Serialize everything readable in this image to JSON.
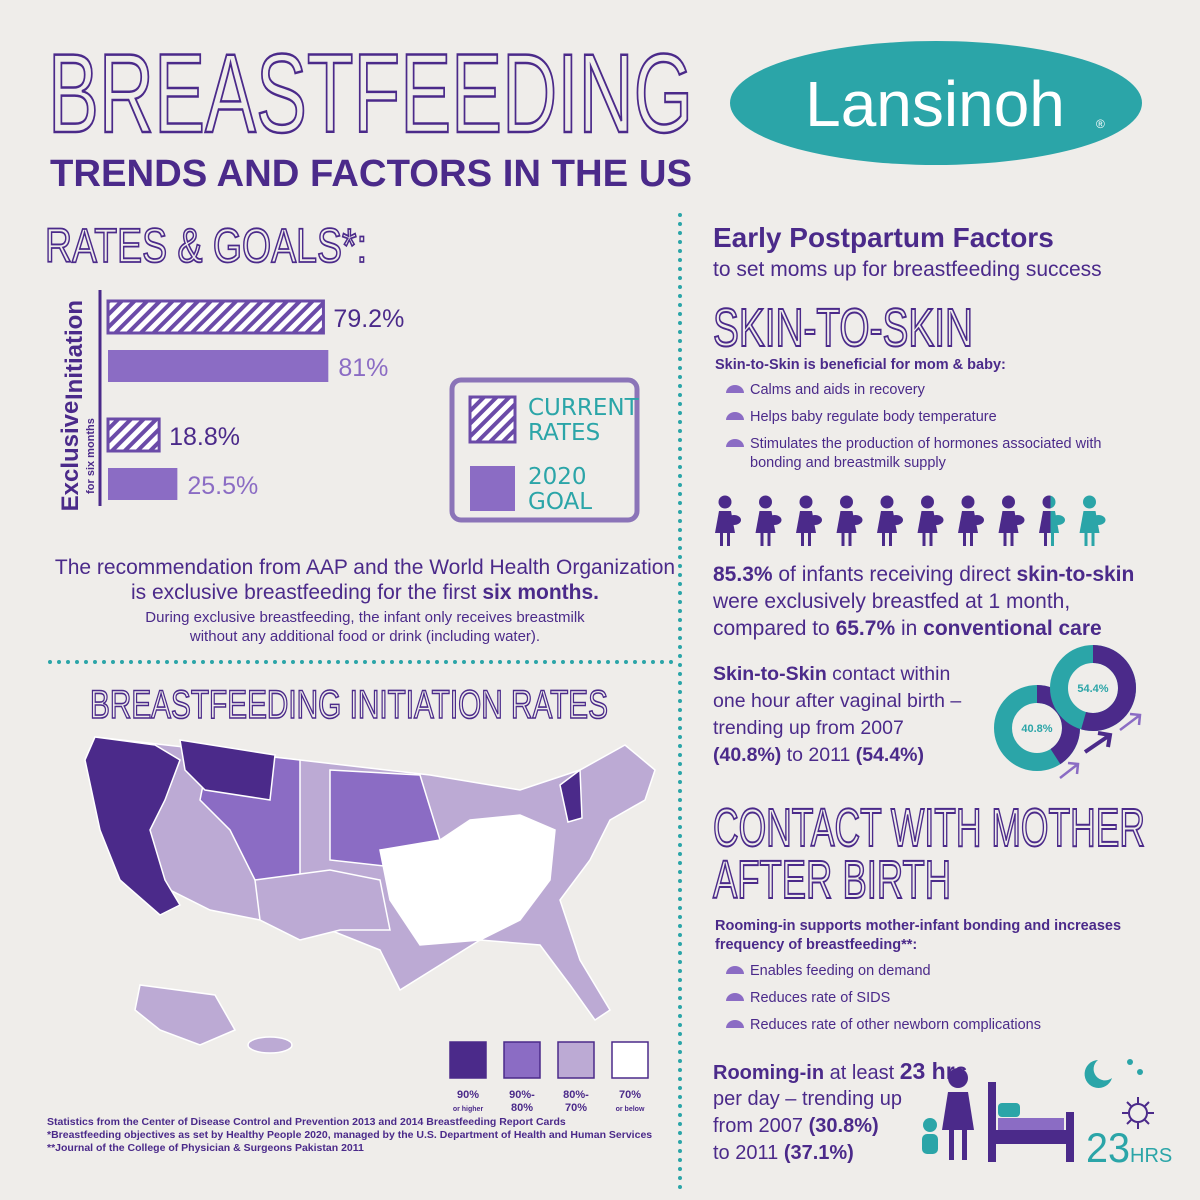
{
  "header": {
    "title": "BREASTFEEDING",
    "subtitle": "TRENDS AND FACTORS IN THE US",
    "logo": "Lansinoh",
    "logo_mark": "®"
  },
  "chart_data": [
    {
      "type": "bar",
      "orientation": "horizontal",
      "title": "RATES & GOALS*:",
      "categories": [
        "Initiation",
        "Exclusive"
      ],
      "category_notes": [
        null,
        "for six months"
      ],
      "series": [
        {
          "name": "CURRENT RATES",
          "color": "#6b4ba8",
          "pattern": "hatch",
          "values": [
            79.2,
            18.8
          ],
          "value_labels": [
            "79.2%",
            "18.8%"
          ]
        },
        {
          "name": "2020 GOAL",
          "color": "#8b6cc4",
          "values": [
            81,
            25.5
          ],
          "value_labels": [
            "81%",
            "25.5%"
          ]
        }
      ]
    },
    {
      "type": "donut",
      "values": [
        40.8,
        54.4
      ],
      "value_labels": [
        "40.8%",
        "54.4%"
      ],
      "color": "#4b2a8a",
      "track_color": "#2ba5a8"
    }
  ],
  "aap_note": {
    "lines": [
      [
        "The recommendation from AAP and the World Health Organization"
      ],
      [
        "is exclusive breastfeeding for the first ",
        "six months."
      ]
    ],
    "detail": [
      "During exclusive breastfeeding, the infant only receives breastmilk",
      "without any additional food or drink (including water)."
    ]
  },
  "map": {
    "title": "BREASTFEEDING INITIATION RATES",
    "legend": [
      {
        "color": "#4b2a8a",
        "label": [
          "90%",
          "or higher"
        ]
      },
      {
        "color": "#8b6cc4",
        "label": [
          "90%-",
          "80%"
        ]
      },
      {
        "color": "#bcaad4",
        "label": [
          "80%-",
          "70%"
        ]
      },
      {
        "color": "#ffffff",
        "label": [
          "70%",
          "or below"
        ]
      }
    ]
  },
  "footnotes": [
    "Statistics from the Center of Disease Control and Prevention 2013 and 2014 Breastfeeding Report Cards",
    "*Breastfeeding objectives as set by Healthy People 2020, managed by the U.S. Department of Health and Human Services",
    "**Journal of the College of Physician & Surgeons Pakistan 2011"
  ],
  "postpartum": {
    "title": "Early Postpartum Factors",
    "subtitle": "to set moms up for breastfeeding success"
  },
  "skin": {
    "heading": "SKIN-TO-SKIN",
    "intro": "Skin-to-Skin is beneficial for mom & baby:",
    "bullets": [
      [
        "Calms and aids in recovery"
      ],
      [
        "Helps baby regulate body temperature"
      ],
      [
        "Stimulates the production of hormones associated with",
        "bonding and breastmilk supply"
      ]
    ],
    "stat": {
      "value": 85.3,
      "lines": [
        [
          "85.3%",
          " of infants receiving direct ",
          "skin-to-skin"
        ],
        [
          "were exclusively breastfed at 1 month,"
        ],
        [
          "compared to ",
          "65.7%",
          " in ",
          "conventional care"
        ]
      ]
    },
    "trend": [
      [
        "Skin-to-Skin",
        " contact within"
      ],
      [
        "one hour after vaginal birth –"
      ],
      [
        "trending up from 2007"
      ],
      [
        "(40.8%)",
        " to 2011 ",
        "(54.4%)"
      ]
    ]
  },
  "contact": {
    "heading": [
      "CONTACT WITH MOTHER",
      "AFTER BIRTH"
    ],
    "intro": [
      "Rooming-in supports mother-infant bonding and increases",
      "frequency of breastfeeding**:"
    ],
    "bullets": [
      "Enables feeding on demand",
      "Reduces rate of SIDS",
      "Reduces rate of other newborn complications"
    ],
    "trend": [
      [
        "Rooming-in",
        " at least ",
        "23 hrs"
      ],
      [
        "per day – trending up"
      ],
      [
        "from 2007 ",
        "(30.8%)"
      ],
      [
        "to 2011 ",
        "(37.1%)"
      ]
    ],
    "icon": [
      "23",
      "HRS"
    ]
  }
}
